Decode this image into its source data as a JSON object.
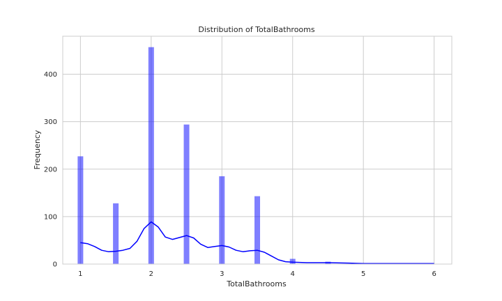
{
  "chart_data": {
    "type": "bar",
    "title": "Distribution of TotalBathrooms",
    "xlabel": "TotalBathrooms",
    "ylabel": "Frequency",
    "xlim": [
      0.75,
      6.25
    ],
    "ylim": [
      0,
      480
    ],
    "xticks": [
      1,
      2,
      3,
      4,
      5,
      6
    ],
    "yticks": [
      0,
      100,
      200,
      300,
      400
    ],
    "grid": true,
    "bar_color": "#0000ff",
    "bar_opacity": 0.5,
    "kde_color": "#0000ff",
    "series": [
      {
        "values": [
          {
            "x": 1.0,
            "y": 227
          },
          {
            "x": 1.5,
            "y": 128
          },
          {
            "x": 2.0,
            "y": 457
          },
          {
            "x": 2.5,
            "y": 294
          },
          {
            "x": 3.0,
            "y": 185
          },
          {
            "x": 3.5,
            "y": 143
          },
          {
            "x": 4.0,
            "y": 11
          },
          {
            "x": 4.5,
            "y": 5
          }
        ]
      }
    ],
    "kde": [
      {
        "x": 1.0,
        "y": 45
      },
      {
        "x": 1.1,
        "y": 43
      },
      {
        "x": 1.2,
        "y": 37
      },
      {
        "x": 1.3,
        "y": 29
      },
      {
        "x": 1.4,
        "y": 26
      },
      {
        "x": 1.5,
        "y": 27
      },
      {
        "x": 1.6,
        "y": 29
      },
      {
        "x": 1.7,
        "y": 33
      },
      {
        "x": 1.8,
        "y": 48
      },
      {
        "x": 1.9,
        "y": 75
      },
      {
        "x": 2.0,
        "y": 89
      },
      {
        "x": 2.1,
        "y": 78
      },
      {
        "x": 2.2,
        "y": 57
      },
      {
        "x": 2.3,
        "y": 52
      },
      {
        "x": 2.4,
        "y": 56
      },
      {
        "x": 2.5,
        "y": 60
      },
      {
        "x": 2.6,
        "y": 55
      },
      {
        "x": 2.7,
        "y": 42
      },
      {
        "x": 2.8,
        "y": 35
      },
      {
        "x": 2.9,
        "y": 37
      },
      {
        "x": 3.0,
        "y": 39
      },
      {
        "x": 3.1,
        "y": 36
      },
      {
        "x": 3.2,
        "y": 29
      },
      {
        "x": 3.3,
        "y": 26
      },
      {
        "x": 3.4,
        "y": 28
      },
      {
        "x": 3.5,
        "y": 29
      },
      {
        "x": 3.6,
        "y": 25
      },
      {
        "x": 3.7,
        "y": 17
      },
      {
        "x": 3.8,
        "y": 9
      },
      {
        "x": 3.9,
        "y": 5
      },
      {
        "x": 4.0,
        "y": 4
      },
      {
        "x": 4.2,
        "y": 3
      },
      {
        "x": 4.5,
        "y": 3
      },
      {
        "x": 4.8,
        "y": 2
      },
      {
        "x": 5.0,
        "y": 1
      },
      {
        "x": 5.5,
        "y": 1
      },
      {
        "x": 6.0,
        "y": 1
      }
    ]
  }
}
